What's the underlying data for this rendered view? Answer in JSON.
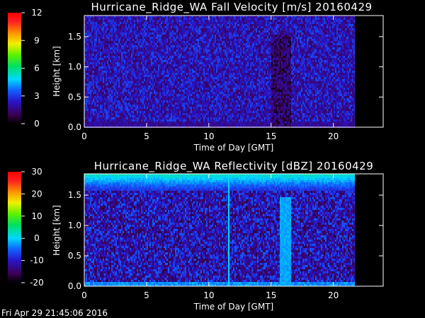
{
  "chart_data": [
    {
      "type": "heatmap",
      "title": "Hurricane_Ridge_WA Fall Velocity [m/s] 20160429",
      "xlabel": "Time of Day [GMT]",
      "ylabel": "Height [km]",
      "xlim": [
        0,
        24
      ],
      "ylim": [
        0,
        1.85
      ],
      "data_end_hour": 21.7,
      "x_ticks": [
        "0",
        "5",
        "10",
        "15",
        "20"
      ],
      "y_ticks": [
        "0.0",
        "0.5",
        "1.0",
        "1.5"
      ],
      "colorbar": {
        "range": [
          0,
          12
        ],
        "ticks": [
          "0",
          "3",
          "6",
          "9",
          "12"
        ]
      },
      "background_value": 2.2,
      "features": [
        {
          "name": "precipitation-shaft",
          "x_range": [
            15.0,
            16.6
          ],
          "y_range": [
            0.0,
            1.55
          ],
          "value": 1.2
        }
      ]
    },
    {
      "type": "heatmap",
      "title": "Hurricane_Ridge_WA Reflectivity [dBZ] 20160429",
      "xlabel": "Time of Day [GMT]",
      "ylabel": "Height [km]",
      "xlim": [
        0,
        24
      ],
      "ylim": [
        0,
        1.85
      ],
      "data_end_hour": 21.7,
      "x_ticks": [
        "0",
        "5",
        "10",
        "15",
        "20"
      ],
      "y_ticks": [
        "0.0",
        "0.5",
        "1.0",
        "1.5"
      ],
      "colorbar": {
        "range": [
          -20,
          30
        ],
        "ticks": [
          "-20",
          "-10",
          "0",
          "10",
          "20",
          "30"
        ]
      },
      "background_value": -11,
      "top_layer": {
        "y_range": [
          1.6,
          1.85
        ],
        "value": -2
      },
      "features": [
        {
          "name": "vertical-streak",
          "x": 11.6,
          "value": 0
        },
        {
          "name": "precipitation-column",
          "x_range": [
            15.6,
            16.5
          ],
          "y_range": [
            0.0,
            1.5
          ],
          "value": -2
        }
      ]
    }
  ],
  "footer": {
    "timestamp": "Fri Apr 29 21:45:06 2016"
  }
}
